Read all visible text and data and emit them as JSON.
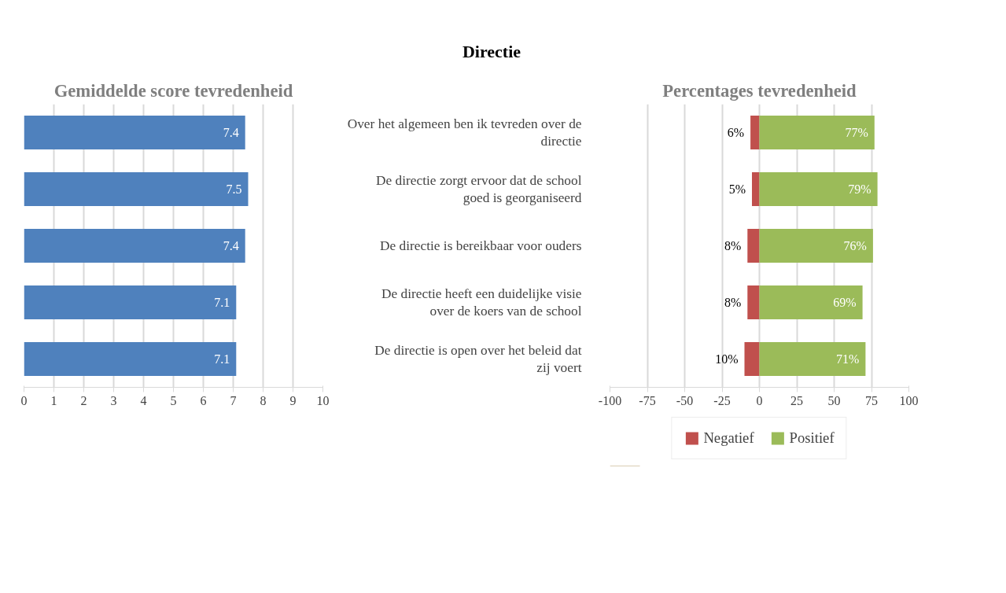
{
  "chart_data": [
    {
      "type": "other",
      "title": "Directie"
    },
    {
      "type": "bar",
      "title": "Gemiddelde score tevredenheid",
      "orientation": "horizontal",
      "categories": [
        null,
        null,
        null,
        null,
        null
      ],
      "series": [
        {
          "color": "#4f81bd",
          "values": [
            7.4,
            7.5,
            7.4,
            7.1,
            7.1
          ]
        }
      ],
      "xlim": [
        0,
        10
      ],
      "xticks": [
        0,
        1,
        2,
        3,
        4,
        5,
        6,
        7,
        8,
        9,
        10
      ],
      "grid": "x",
      "data_labels": true,
      "tick_labels": "x"
    },
    {
      "type": "bar",
      "title": "Percentages tevredenheid",
      "orientation": "horizontal",
      "categories": [
        "Over het algemeen ben ik tevreden over de directie",
        "De directie zorgt ervoor dat de school goed is georganiseerd",
        "De directie is bereikbaar voor ouders",
        "De directie heeft een duidelijke visie over de koers van de school",
        "De directie is open over het beleid dat zij voert"
      ],
      "series": [
        {
          "name": "Negatief",
          "color": "#c0504d",
          "values": [
            6,
            5,
            8,
            8,
            10
          ],
          "base": [
            -6,
            -5,
            -8,
            -8,
            -10
          ],
          "value_labels": [
            "6%",
            "5%",
            "8%",
            "8%",
            "10%"
          ]
        },
        {
          "name": "Positief",
          "color": "#9bbb59",
          "values": [
            77,
            79,
            76,
            69,
            71
          ],
          "value_labels": [
            "77%",
            "79%",
            "76%",
            "69%",
            "71%"
          ]
        }
      ],
      "xlim": [
        -100,
        100
      ],
      "xticks": [
        -100,
        -75,
        -50,
        -25,
        0,
        25,
        50,
        75,
        100
      ],
      "grid": "x",
      "legend": "bottom"
    }
  ]
}
